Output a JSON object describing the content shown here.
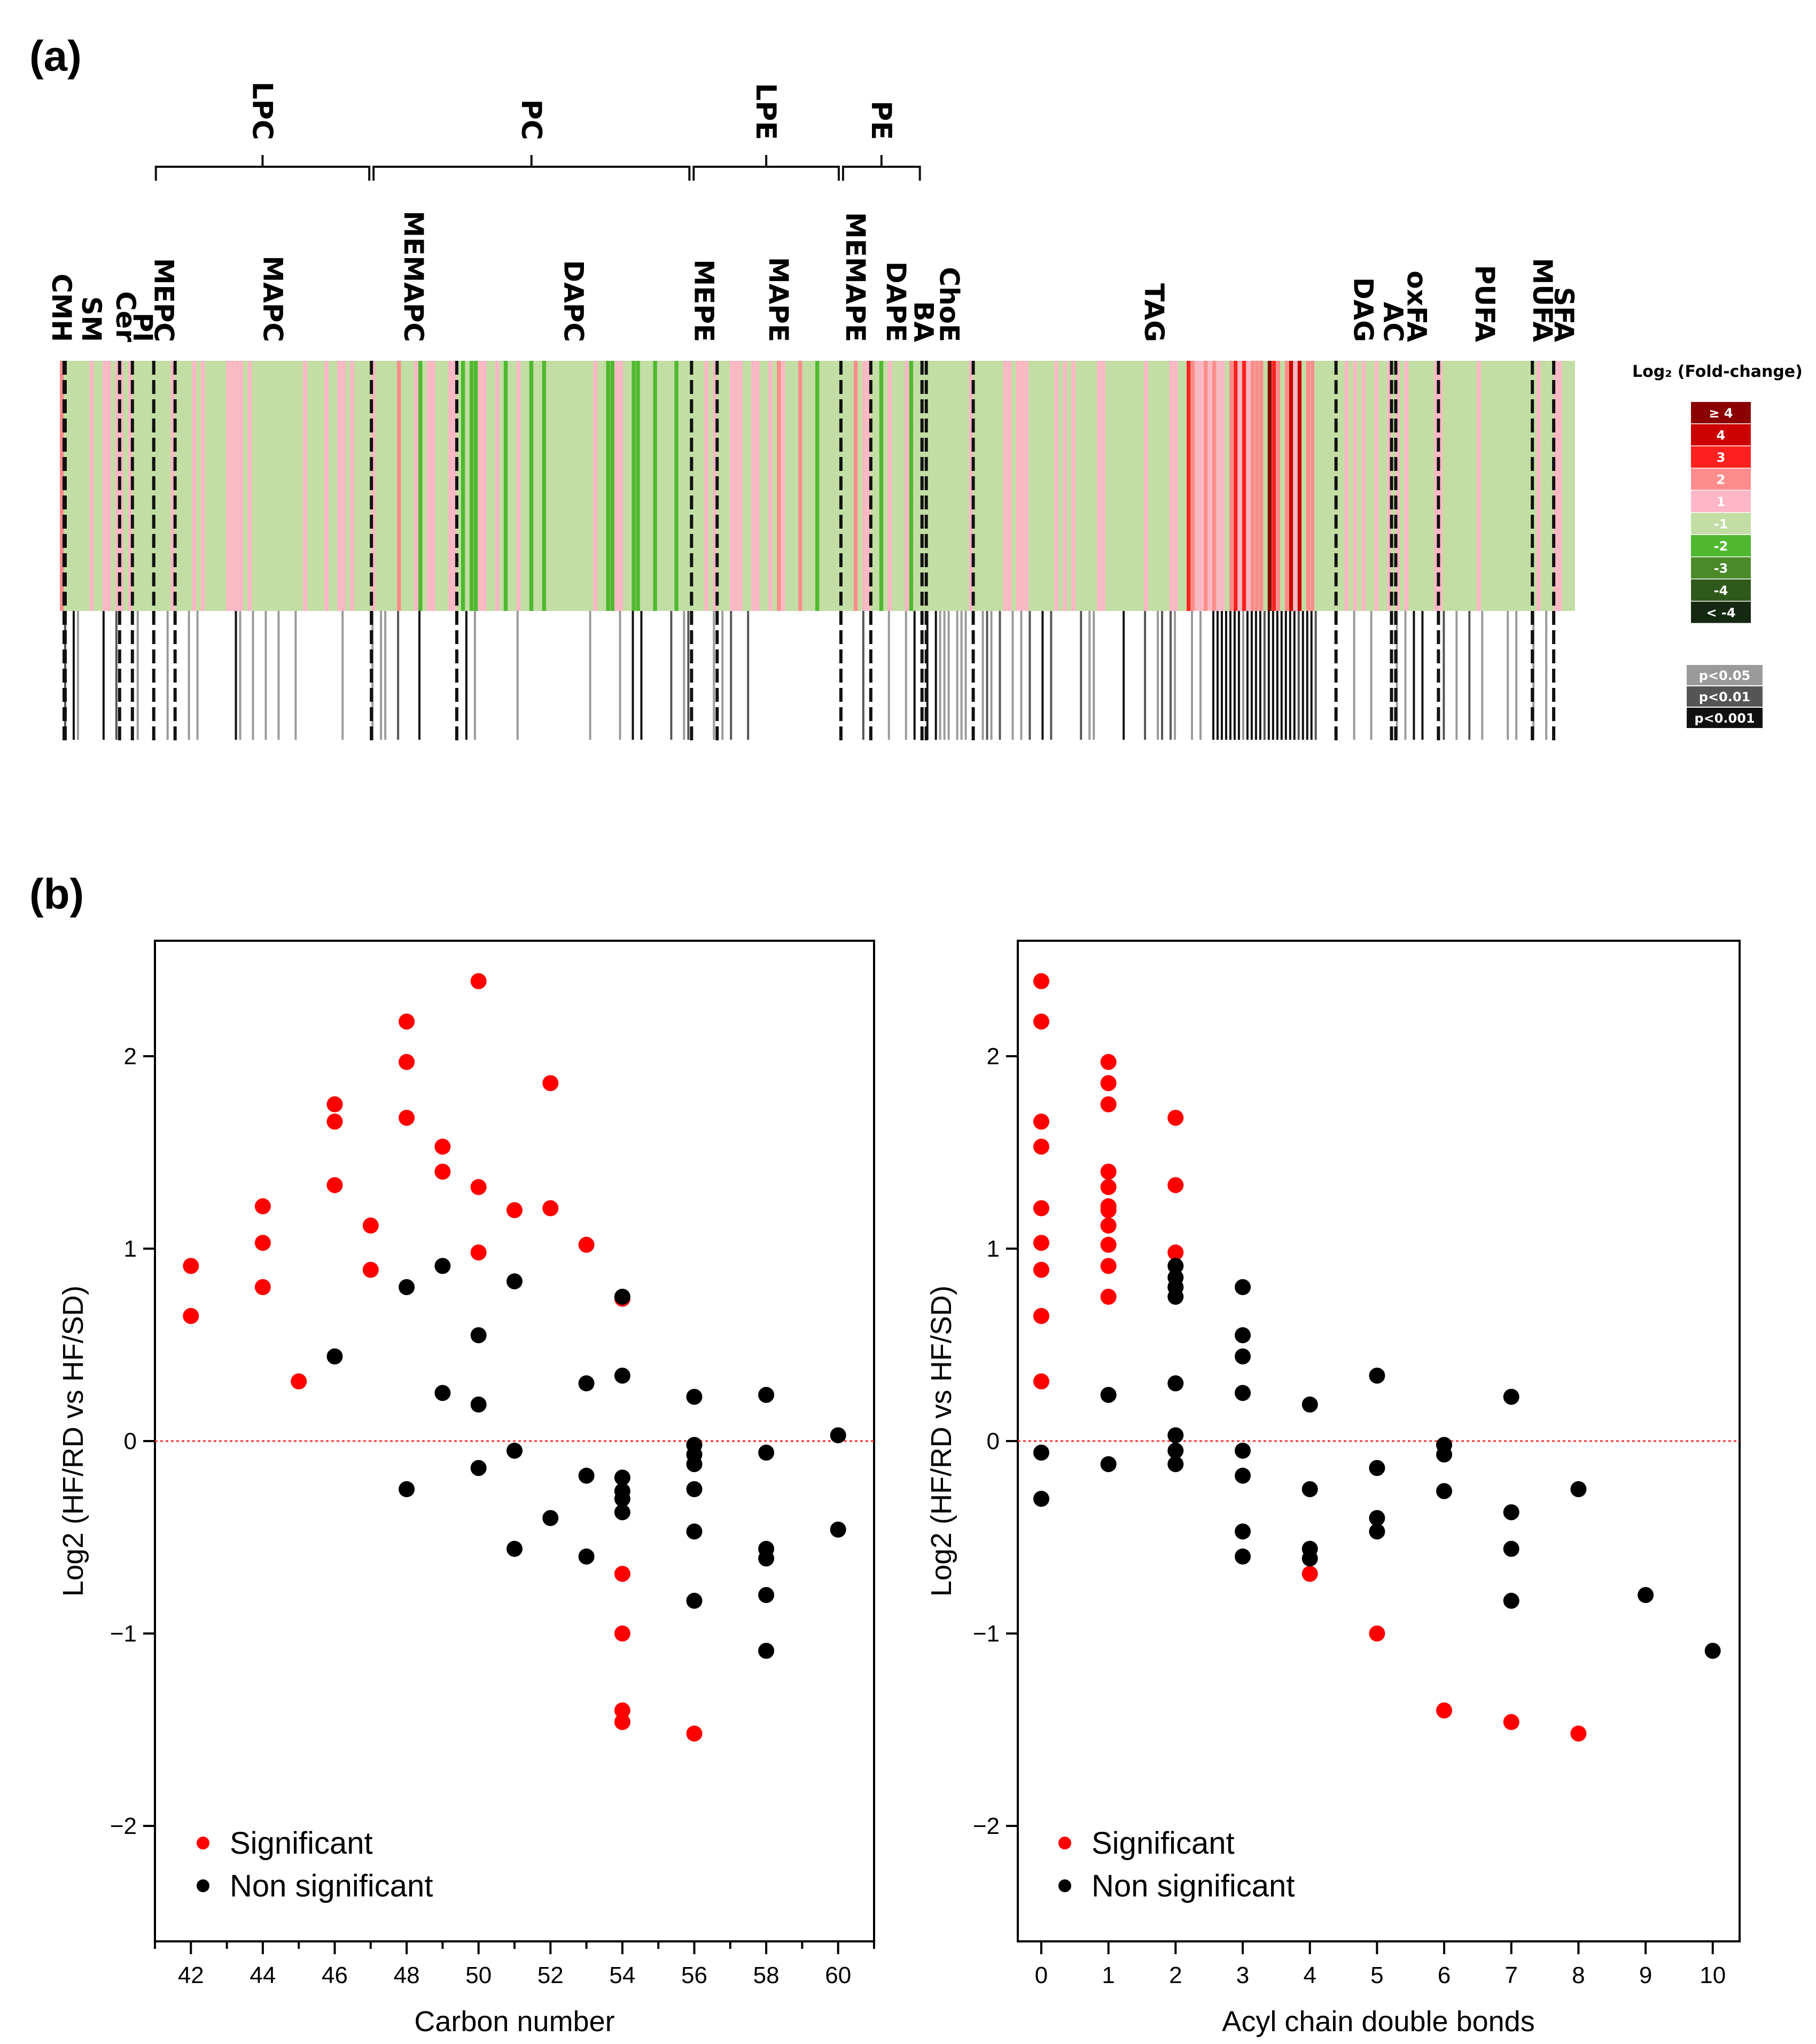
{
  "panel_a": {
    "label": "(a)",
    "groups": [
      {
        "name": "LPC",
        "from": "MEPC",
        "to": "MAPC"
      },
      {
        "name": "PC",
        "from": "MEMAPC",
        "to": "DAPC"
      },
      {
        "name": "LPE",
        "from": "MEPE",
        "to": "MAPE"
      },
      {
        "name": "PE",
        "from": "MEMAPE",
        "to": "DAPE"
      }
    ],
    "classes": [
      "CMH",
      "SM",
      "Cer",
      "PI",
      "MEPC",
      "MAPC",
      "MEMAPC",
      "DAPC",
      "MEPE",
      "MAPE",
      "MEMAPE",
      "DAPE",
      "BA",
      "ChoE",
      "TAG",
      "DAG",
      "AC",
      "oxFA",
      "PUFA",
      "MUFA",
      "SFA"
    ],
    "class_counts": {
      "CMH": 1,
      "SM": 13,
      "Cer": 3,
      "PI": 5,
      "MEPC": 5,
      "MAPC": 46,
      "MEMAPC": 20,
      "DAPC": 55,
      "MEPE": 6,
      "MAPE": 29,
      "MEMAPE": 7,
      "DAPE": 12,
      "BA": 1,
      "ChoE": 11,
      "TAG": 85,
      "DAG": 13,
      "AC": 1,
      "oxFA": 10,
      "PUFA": 22,
      "MUFA": 5,
      "SFA": 5
    },
    "fc_legend": {
      "title": "Log₂ (Fold-change)",
      "items": [
        {
          "label": "≥ 4",
          "color": "#8b0000"
        },
        {
          "label": "4",
          "color": "#cc0000"
        },
        {
          "label": "3",
          "color": "#ff2020"
        },
        {
          "label": "2",
          "color": "#ff8c8c"
        },
        {
          "label": "1",
          "color": "#ffb6c6"
        },
        {
          "label": "-1",
          "color": "#c2dea4"
        },
        {
          "label": "-2",
          "color": "#4fb830"
        },
        {
          "label": "-3",
          "color": "#4a8a28"
        },
        {
          "label": "-4",
          "color": "#2f5a1c"
        },
        {
          "label": "< -4",
          "color": "#142812"
        }
      ]
    },
    "p_legend": {
      "items": [
        {
          "label": "p<0.05",
          "color": "#9a9a9a"
        },
        {
          "label": "p<0.01",
          "color": "#555555"
        },
        {
          "label": "p<0.001",
          "color": "#111111"
        }
      ]
    }
  },
  "panel_b": {
    "label": "(b)",
    "legend": {
      "significant": "Significant",
      "non_significant": "Non significant"
    },
    "colors": {
      "significant": "#ff0000",
      "non_significant": "#000000",
      "zero_line": "#ff3030"
    }
  },
  "chart_data": [
    {
      "type": "scatter",
      "title": "",
      "xlabel": "Carbon number",
      "ylabel": "Log2 (HF/RD vs HF/SD)",
      "xlim": [
        41,
        61
      ],
      "ylim": [
        -2.6,
        2.6
      ],
      "xticks": [
        42,
        44,
        46,
        48,
        50,
        52,
        54,
        56,
        58,
        60
      ],
      "yticks": [
        -2,
        -1,
        0,
        1,
        2
      ],
      "series": [
        {
          "name": "Significant",
          "points": [
            [
              42,
              0.91
            ],
            [
              42,
              0.65
            ],
            [
              44,
              1.22
            ],
            [
              44,
              1.03
            ],
            [
              44,
              0.8
            ],
            [
              45,
              0.31
            ],
            [
              46,
              1.75
            ],
            [
              46,
              1.66
            ],
            [
              46,
              1.33
            ],
            [
              47,
              1.12
            ],
            [
              47,
              0.89
            ],
            [
              48,
              2.18
            ],
            [
              48,
              1.97
            ],
            [
              48,
              1.68
            ],
            [
              49,
              1.53
            ],
            [
              49,
              1.4
            ],
            [
              50,
              2.39
            ],
            [
              50,
              1.32
            ],
            [
              50,
              0.98
            ],
            [
              51,
              1.2
            ],
            [
              52,
              1.86
            ],
            [
              52,
              1.21
            ],
            [
              53,
              1.02
            ],
            [
              54,
              0.74
            ],
            [
              54,
              -0.69
            ],
            [
              54,
              -1.0
            ],
            [
              54,
              -1.4
            ],
            [
              54,
              -1.46
            ],
            [
              56,
              -1.52
            ]
          ]
        },
        {
          "name": "Non significant",
          "points": [
            [
              46,
              0.44
            ],
            [
              48,
              0.8
            ],
            [
              48,
              -0.25
            ],
            [
              49,
              0.91
            ],
            [
              49,
              0.25
            ],
            [
              50,
              0.55
            ],
            [
              50,
              0.19
            ],
            [
              50,
              -0.14
            ],
            [
              51,
              0.83
            ],
            [
              51,
              -0.05
            ],
            [
              51,
              -0.56
            ],
            [
              52,
              -0.4
            ],
            [
              53,
              0.3
            ],
            [
              53,
              -0.18
            ],
            [
              53,
              -0.6
            ],
            [
              54,
              0.75
            ],
            [
              54,
              0.34
            ],
            [
              54,
              -0.19
            ],
            [
              54,
              -0.26
            ],
            [
              54,
              -0.3
            ],
            [
              54,
              -0.37
            ],
            [
              56,
              0.23
            ],
            [
              56,
              -0.02
            ],
            [
              56,
              -0.07
            ],
            [
              56,
              -0.12
            ],
            [
              56,
              -0.25
            ],
            [
              56,
              -0.47
            ],
            [
              56,
              -0.83
            ],
            [
              58,
              0.24
            ],
            [
              58,
              -0.06
            ],
            [
              58,
              -0.56
            ],
            [
              58,
              -0.61
            ],
            [
              58,
              -0.8
            ],
            [
              58,
              -1.09
            ],
            [
              60,
              0.03
            ],
            [
              60,
              -0.46
            ]
          ]
        }
      ]
    },
    {
      "type": "scatter",
      "title": "",
      "xlabel": "Acyl chain double bonds",
      "ylabel": "Log2 (HF/RD vs HF/SD)",
      "xlim": [
        -0.35,
        10.4
      ],
      "ylim": [
        -2.6,
        2.6
      ],
      "xticks": [
        0,
        1,
        2,
        3,
        4,
        5,
        6,
        7,
        8,
        9,
        10
      ],
      "yticks": [
        -2,
        -1,
        0,
        1,
        2
      ],
      "series": [
        {
          "name": "Significant",
          "points": [
            [
              0,
              2.39
            ],
            [
              0,
              2.18
            ],
            [
              0,
              1.66
            ],
            [
              0,
              1.53
            ],
            [
              0,
              1.21
            ],
            [
              0,
              1.03
            ],
            [
              0,
              0.89
            ],
            [
              0,
              0.65
            ],
            [
              0,
              0.31
            ],
            [
              1,
              1.97
            ],
            [
              1,
              1.86
            ],
            [
              1,
              1.75
            ],
            [
              1,
              1.4
            ],
            [
              1,
              1.32
            ],
            [
              1,
              1.22
            ],
            [
              1,
              1.2
            ],
            [
              1,
              1.12
            ],
            [
              1,
              1.02
            ],
            [
              1,
              0.91
            ],
            [
              1,
              0.75
            ],
            [
              2,
              1.68
            ],
            [
              2,
              1.33
            ],
            [
              2,
              0.98
            ],
            [
              2,
              0.8
            ],
            [
              4,
              -0.69
            ],
            [
              5,
              -1.0
            ],
            [
              6,
              -1.4
            ],
            [
              7,
              -1.46
            ],
            [
              8,
              -1.52
            ]
          ]
        },
        {
          "name": "Non significant",
          "points": [
            [
              0,
              -0.06
            ],
            [
              0,
              -0.3
            ],
            [
              1,
              0.24
            ],
            [
              1,
              -0.12
            ],
            [
              2,
              0.91
            ],
            [
              2,
              0.85
            ],
            [
              2,
              0.8
            ],
            [
              2,
              0.75
            ],
            [
              2,
              0.3
            ],
            [
              2,
              0.03
            ],
            [
              2,
              -0.05
            ],
            [
              2,
              -0.12
            ],
            [
              3,
              0.8
            ],
            [
              3,
              0.55
            ],
            [
              3,
              0.44
            ],
            [
              3,
              0.25
            ],
            [
              3,
              -0.05
            ],
            [
              3,
              -0.18
            ],
            [
              3,
              -0.47
            ],
            [
              3,
              -0.6
            ],
            [
              4,
              0.19
            ],
            [
              4,
              -0.25
            ],
            [
              4,
              -0.56
            ],
            [
              4,
              -0.61
            ],
            [
              5,
              0.34
            ],
            [
              5,
              -0.14
            ],
            [
              5,
              -0.4
            ],
            [
              5,
              -0.47
            ],
            [
              6,
              -0.02
            ],
            [
              6,
              -0.07
            ],
            [
              6,
              -0.26
            ],
            [
              7,
              0.23
            ],
            [
              7,
              -0.37
            ],
            [
              7,
              -0.56
            ],
            [
              7,
              -0.83
            ],
            [
              8,
              -0.25
            ],
            [
              9,
              -0.8
            ],
            [
              10,
              -1.09
            ]
          ]
        }
      ]
    }
  ]
}
